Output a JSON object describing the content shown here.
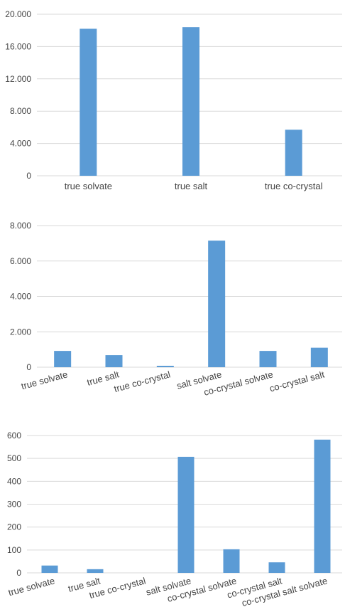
{
  "colors": {
    "bar": "#5b9bd5",
    "grid": "#d9d9d9",
    "text": "#444444"
  },
  "chart_data": [
    {
      "type": "bar",
      "categories": [
        "true solvate",
        "true salt",
        "true co-crystal"
      ],
      "values": [
        18200,
        18400,
        5700
      ],
      "yticks": [
        "0",
        "4.000",
        "8.000",
        "12.000",
        "16.000",
        "20.000"
      ],
      "ylim": [
        0,
        20000
      ],
      "grid": true,
      "xlabel_rotation": 0
    },
    {
      "type": "bar",
      "categories": [
        "true solvate",
        "true salt",
        "true co-crystal",
        "salt solvate",
        "co-crystal solvate",
        "co-crystal salt"
      ],
      "values": [
        920,
        680,
        80,
        7150,
        920,
        1100
      ],
      "yticks": [
        "0",
        "2.000",
        "4.000",
        "6.000",
        "8.000"
      ],
      "ylim": [
        0,
        8000
      ],
      "grid": true,
      "xlabel_rotation": -15
    },
    {
      "type": "bar",
      "categories": [
        "true solvate",
        "true salt",
        "true co-crystal",
        "salt solvate",
        "co-crystal solvate",
        "co-crystal salt",
        "co-crystal salt solvate"
      ],
      "values": [
        32,
        16,
        0,
        507,
        103,
        46,
        582
      ],
      "yticks": [
        "0",
        "100",
        "200",
        "300",
        "400",
        "500",
        "600"
      ],
      "ylim": [
        0,
        600
      ],
      "grid": true,
      "xlabel_rotation": -15
    }
  ]
}
